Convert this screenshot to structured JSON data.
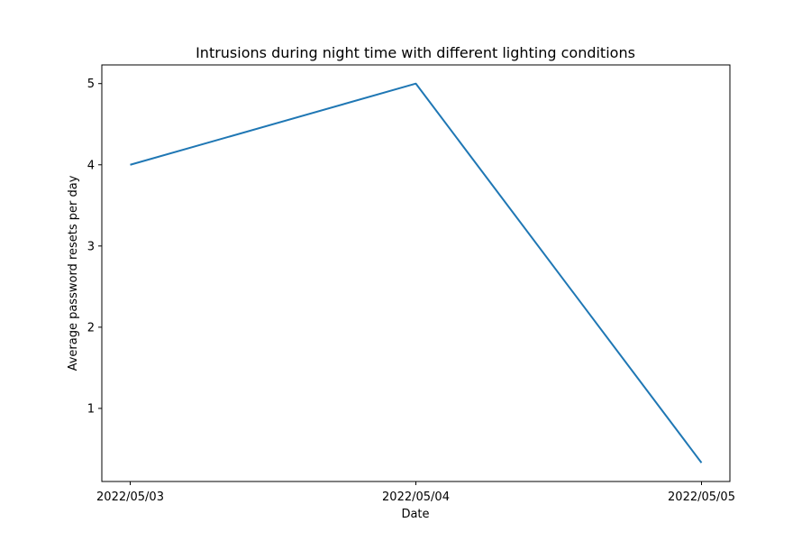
{
  "chart_data": {
    "type": "line",
    "title": "Intrusions during night time with different lighting conditions",
    "xlabel": "Date",
    "ylabel": "Average password resets per day",
    "categories": [
      "2022/05/03",
      "2022/05/04",
      "2022/05/05"
    ],
    "series": [
      {
        "values": [
          4,
          5,
          0.33
        ],
        "color": "#1f77b4"
      }
    ],
    "yticks": [
      1,
      2,
      3,
      4,
      5
    ],
    "ylim": [
      0.1,
      5.23
    ],
    "grid": false,
    "legend": "none"
  }
}
